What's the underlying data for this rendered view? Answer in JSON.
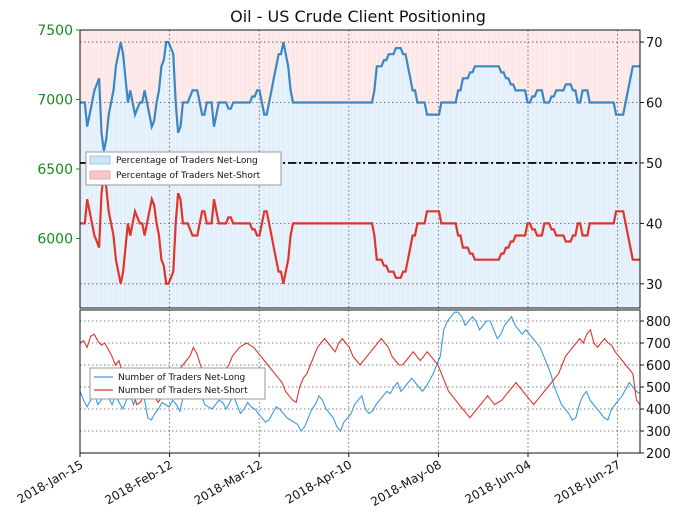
{
  "chart_data": {
    "type": "line",
    "title": "Oil - US Crude Client Positioning",
    "x_tick_labels": [
      "2018-Jan-15",
      "2018-Feb-12",
      "2018-Mar-12",
      "2018-Apr-10",
      "2018-May-08",
      "2018-Jun-04",
      "2018-Jun-27"
    ],
    "top_panel": {
      "left_axis": {
        "ylim": [
          5500,
          7500
        ],
        "ticks": [
          "7500",
          "7000",
          "6500",
          "6000"
        ]
      },
      "right_axis": {
        "ylim": [
          26,
          72
        ],
        "ticks": [
          "70",
          "60",
          "50",
          "40",
          "30"
        ]
      },
      "reference_line": 50,
      "legend": [
        "Percentage of Traders Net-Long",
        "Percentage of Traders Net-Short"
      ],
      "series": [
        {
          "name": "Percentage of Traders Net-Long",
          "color": "#3b87c4",
          "values": [
            60,
            60,
            60,
            56,
            58,
            60,
            62,
            63,
            64,
            55,
            52,
            54,
            58,
            60,
            62,
            66,
            68,
            70,
            68,
            64,
            60,
            62,
            60,
            58,
            59,
            60,
            60,
            62,
            60,
            58,
            56,
            57,
            60,
            62,
            66,
            67,
            70,
            70,
            69,
            68,
            60,
            55,
            56,
            60,
            60,
            60,
            61,
            62,
            62,
            62,
            60,
            58,
            58,
            60,
            60,
            60,
            56,
            58,
            60,
            60,
            60,
            60,
            59,
            59,
            60,
            60,
            60,
            60,
            60,
            60,
            60,
            60,
            61,
            61,
            62,
            62,
            60,
            58,
            58,
            60,
            62,
            64,
            66,
            68,
            68,
            70,
            68,
            66,
            62,
            60,
            60,
            60,
            60,
            60,
            60,
            60,
            60,
            60,
            60,
            60,
            60,
            60,
            60,
            60,
            60,
            60,
            60,
            60,
            60,
            60,
            60,
            60,
            60,
            60,
            60,
            60,
            60,
            60,
            60,
            60,
            60,
            60,
            60,
            62,
            66,
            66,
            66,
            67,
            67,
            68,
            68,
            68,
            69,
            69,
            69,
            68,
            68,
            66,
            64,
            62,
            62,
            60,
            60,
            60,
            60,
            58,
            58,
            58,
            58,
            58,
            58,
            60,
            60,
            60,
            60,
            60,
            60,
            60,
            62,
            62,
            64,
            64,
            64,
            65,
            65,
            66,
            66,
            66,
            66,
            66,
            66,
            66,
            66,
            66,
            66,
            66,
            65,
            65,
            64,
            64,
            63,
            63,
            62,
            62,
            62,
            62,
            62,
            60,
            60,
            61,
            61,
            62,
            62,
            62,
            60,
            60,
            60,
            61,
            61,
            62,
            62,
            62,
            62,
            63,
            63,
            63,
            62,
            62,
            60,
            60,
            62,
            62,
            62,
            60,
            60,
            60,
            60,
            60,
            60,
            60,
            60,
            60,
            60,
            60,
            58,
            58,
            58,
            58,
            60,
            62,
            64,
            66,
            66,
            66,
            66
          ]
        },
        {
          "name": "Percentage of Traders Net-Short",
          "color": "#e0352b",
          "values": [
            40,
            40,
            40,
            44,
            42,
            40,
            38,
            37,
            36,
            45,
            48,
            46,
            42,
            40,
            38,
            34,
            32,
            30,
            32,
            36,
            40,
            38,
            40,
            42,
            41,
            40,
            40,
            38,
            40,
            42,
            44,
            43,
            40,
            38,
            34,
            33,
            30,
            30,
            31,
            32,
            40,
            45,
            44,
            40,
            40,
            40,
            39,
            38,
            38,
            38,
            40,
            42,
            42,
            40,
            40,
            40,
            44,
            42,
            40,
            40,
            40,
            40,
            41,
            41,
            40,
            40,
            40,
            40,
            40,
            40,
            40,
            40,
            39,
            39,
            38,
            38,
            40,
            42,
            42,
            40,
            38,
            36,
            34,
            32,
            32,
            30,
            32,
            34,
            38,
            40,
            40,
            40,
            40,
            40,
            40,
            40,
            40,
            40,
            40,
            40,
            40,
            40,
            40,
            40,
            40,
            40,
            40,
            40,
            40,
            40,
            40,
            40,
            40,
            40,
            40,
            40,
            40,
            40,
            40,
            40,
            40,
            40,
            40,
            38,
            34,
            34,
            34,
            33,
            33,
            32,
            32,
            32,
            31,
            31,
            31,
            32,
            32,
            34,
            36,
            38,
            38,
            40,
            40,
            40,
            40,
            42,
            42,
            42,
            42,
            42,
            42,
            40,
            40,
            40,
            40,
            40,
            40,
            40,
            38,
            38,
            36,
            36,
            36,
            35,
            35,
            34,
            34,
            34,
            34,
            34,
            34,
            34,
            34,
            34,
            34,
            34,
            35,
            35,
            36,
            36,
            37,
            37,
            38,
            38,
            38,
            38,
            38,
            40,
            40,
            39,
            39,
            38,
            38,
            38,
            40,
            40,
            40,
            39,
            39,
            38,
            38,
            38,
            38,
            37,
            37,
            37,
            38,
            38,
            40,
            40,
            38,
            38,
            38,
            40,
            40,
            40,
            40,
            40,
            40,
            40,
            40,
            40,
            40,
            40,
            42,
            42,
            42,
            42,
            40,
            38,
            36,
            34,
            34,
            34,
            34
          ]
        }
      ]
    },
    "bottom_panel": {
      "ylim": [
        200,
        850
      ],
      "ticks": [
        "800",
        "700",
        "600",
        "500",
        "400",
        "300",
        "200"
      ],
      "legend": [
        "Number of Traders Net-Long",
        "Number of Traders Net-Short"
      ],
      "series": [
        {
          "name": "Number of Traders Net-Long",
          "color": "#3b9ae1",
          "values": [
            480,
            440,
            410,
            440,
            470,
            420,
            440,
            480,
            450,
            420,
            460,
            430,
            400,
            440,
            470,
            420,
            460,
            480,
            450,
            360,
            350,
            380,
            400,
            430,
            420,
            410,
            440,
            420,
            390,
            460,
            480,
            520,
            540,
            500,
            460,
            420,
            410,
            400,
            420,
            440,
            430,
            400,
            430,
            460,
            420,
            380,
            400,
            430,
            410,
            400,
            380,
            360,
            340,
            350,
            380,
            410,
            400,
            380,
            360,
            350,
            340,
            330,
            300,
            320,
            360,
            400,
            420,
            460,
            440,
            400,
            380,
            360,
            320,
            300,
            340,
            360,
            380,
            420,
            440,
            460,
            400,
            380,
            390,
            420,
            440,
            460,
            480,
            470,
            500,
            520,
            480,
            500,
            520,
            540,
            520,
            500,
            480,
            500,
            530,
            560,
            600,
            640,
            760,
            800,
            820,
            840,
            840,
            820,
            780,
            800,
            820,
            800,
            760,
            780,
            800,
            800,
            760,
            720,
            740,
            780,
            800,
            820,
            780,
            760,
            740,
            760,
            740,
            720,
            700,
            680,
            640,
            600,
            560,
            500,
            460,
            420,
            400,
            380,
            350,
            360,
            420,
            460,
            480,
            440,
            420,
            400,
            380,
            360,
            350,
            400,
            420,
            440,
            460,
            490,
            520,
            500,
            480,
            470
          ]
        },
        {
          "name": "Number of Traders Net-Short",
          "color": "#e0352b",
          "values": [
            700,
            710,
            680,
            730,
            740,
            710,
            690,
            700,
            670,
            640,
            600,
            620,
            560,
            540,
            500,
            480,
            420,
            430,
            460,
            480,
            500,
            460,
            430,
            450,
            480,
            500,
            520,
            560,
            580,
            600,
            620,
            640,
            680,
            650,
            600,
            560,
            560,
            520,
            500,
            540,
            560,
            580,
            600,
            640,
            660,
            680,
            690,
            700,
            690,
            680,
            660,
            640,
            620,
            600,
            580,
            560,
            540,
            520,
            480,
            460,
            440,
            430,
            500,
            540,
            560,
            600,
            640,
            680,
            700,
            720,
            700,
            680,
            660,
            700,
            720,
            700,
            680,
            640,
            620,
            600,
            620,
            640,
            660,
            680,
            700,
            720,
            700,
            680,
            640,
            620,
            600,
            600,
            620,
            640,
            660,
            640,
            620,
            640,
            660,
            640,
            620,
            600,
            560,
            520,
            480,
            460,
            440,
            420,
            400,
            380,
            360,
            380,
            400,
            420,
            440,
            460,
            440,
            420,
            430,
            440,
            460,
            480,
            500,
            520,
            500,
            480,
            460,
            440,
            420,
            440,
            460,
            480,
            500,
            520,
            540,
            560,
            600,
            640,
            660,
            680,
            700,
            720,
            700,
            740,
            760,
            700,
            680,
            700,
            720,
            700,
            690,
            660,
            640,
            620,
            600,
            580,
            560,
            440,
            420
          ]
        }
      ]
    }
  }
}
